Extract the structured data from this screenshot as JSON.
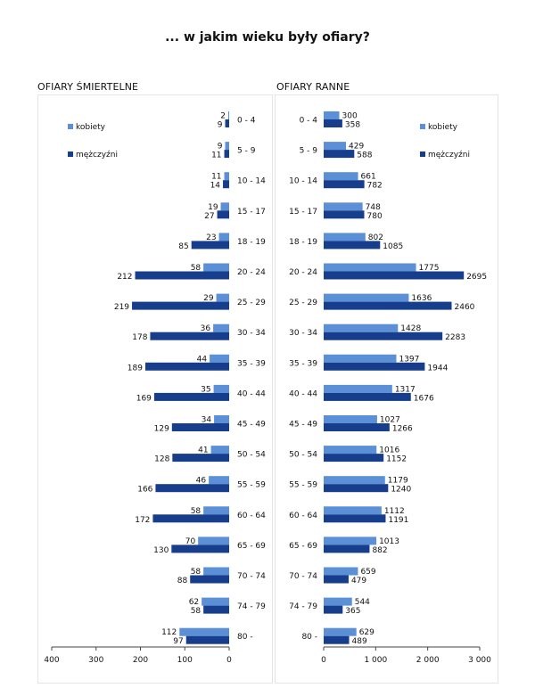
{
  "title": "... w jakim wieku były ofiary?",
  "colors": {
    "women": "#5b8fd6",
    "men": "#163e8c"
  },
  "chart_data": [
    {
      "type": "bar",
      "orientation": "horizontal",
      "direction": "reversed",
      "title": "OFIARY ŚMIERTELNE",
      "categories": [
        "0 - 4",
        "5 - 9",
        "10 - 14",
        "15 - 17",
        "18 - 19",
        "20 - 24",
        "25 - 29",
        "30 - 34",
        "35 - 39",
        "40 - 44",
        "45 - 49",
        "50 - 54",
        "55 - 59",
        "60 - 64",
        "65 - 69",
        "70 - 74",
        "74 - 79",
        "80 -"
      ],
      "series": [
        {
          "name": "kobiety",
          "values": [
            2,
            9,
            11,
            19,
            23,
            58,
            29,
            36,
            44,
            35,
            34,
            41,
            46,
            58,
            70,
            58,
            62,
            112
          ]
        },
        {
          "name": "mężczyźni",
          "values": [
            9,
            11,
            14,
            27,
            85,
            212,
            219,
            178,
            189,
            169,
            129,
            128,
            166,
            172,
            130,
            88,
            58,
            97
          ]
        }
      ],
      "xlim": [
        0,
        400
      ],
      "ticks": [
        400,
        300,
        200,
        100,
        0
      ],
      "tick_labels": [
        "400",
        "300",
        "200",
        "100",
        "0"
      ],
      "legend": "top-left"
    },
    {
      "type": "bar",
      "orientation": "horizontal",
      "title": "OFIARY RANNE",
      "categories": [
        "0 - 4",
        "5 - 9",
        "10 - 14",
        "15 - 17",
        "18 - 19",
        "20 - 24",
        "25 - 29",
        "30 - 34",
        "35 - 39",
        "40 - 44",
        "45 - 49",
        "50 - 54",
        "55 - 59",
        "60 - 64",
        "65 - 69",
        "70 - 74",
        "74 - 79",
        "80 -"
      ],
      "series": [
        {
          "name": "kobiety",
          "values": [
            300,
            429,
            661,
            748,
            802,
            1775,
            1636,
            1428,
            1397,
            1317,
            1027,
            1016,
            1179,
            1112,
            1013,
            659,
            544,
            629
          ]
        },
        {
          "name": "mężczyźni",
          "values": [
            358,
            588,
            782,
            780,
            1085,
            2695,
            2460,
            2283,
            1944,
            1676,
            1266,
            1152,
            1240,
            1191,
            882,
            479,
            365,
            489
          ]
        }
      ],
      "xlim": [
        0,
        3000
      ],
      "ticks": [
        0,
        1000,
        2000,
        3000
      ],
      "tick_labels": [
        "0",
        "1 000",
        "2 000",
        "3 000"
      ],
      "legend": "top-right"
    }
  ]
}
